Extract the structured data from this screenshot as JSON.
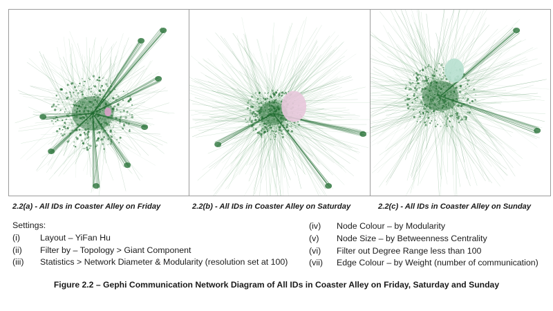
{
  "panels": [
    {
      "caption": "2.2(a) - All IDs in Coaster Alley on Friday",
      "highlight_color": "#d9a0c8"
    },
    {
      "caption": "2.2(b) - All IDs in Coaster Alley on Saturday",
      "highlight_color": "#e8c8dc"
    },
    {
      "caption": "2.2(c) - All IDs in Coaster Alley on Sunday",
      "highlight_color": "#b8e0d0"
    }
  ],
  "colors": {
    "network_dark": "#1e6b2e",
    "network_light": "#5fa36a",
    "border": "#9a9a9a"
  },
  "settings": {
    "heading": "Settings:",
    "items": [
      {
        "num": "(i)",
        "text": "Layout – YiFan Hu"
      },
      {
        "num": "(ii)",
        "text": "Filter by – Topology > Giant Component"
      },
      {
        "num": "(iii)",
        "text": "Statistics > Network Diameter & Modularity (resolution set at 100)"
      },
      {
        "num": "(iv)",
        "text": "Node Colour – by Modularity"
      },
      {
        "num": "(v)",
        "text": "Node Size – by Betweenness Centrality"
      },
      {
        "num": "(vi)",
        "text": "Filter out Degree Range less than 100"
      },
      {
        "num": "(vii)",
        "text": "Edge Colour – by Weight (number of communication)"
      }
    ]
  },
  "figure_title": "Figure 2.2 – Gephi Communication Network Diagram of All IDs in Coaster Alley on Friday, Saturday and Sunday"
}
